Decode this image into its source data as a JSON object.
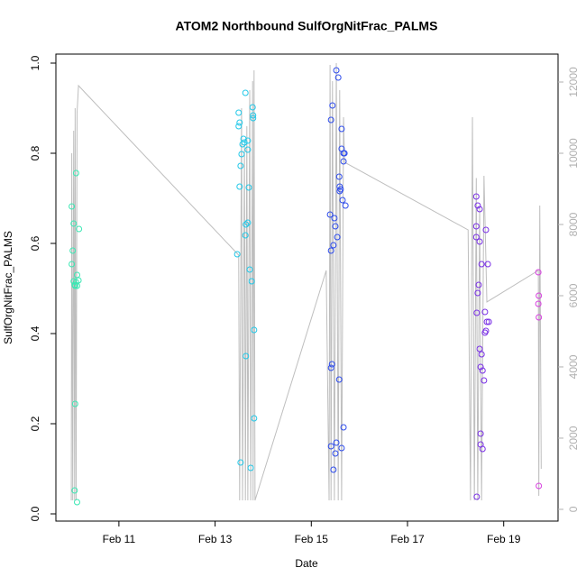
{
  "chart_data": {
    "type": "scatter",
    "title": "ATOM2 Northbound SulfOrgNitFrac_PALMS",
    "x_label": "Date",
    "y_label": "SulfOrgNitFrac_PALMS",
    "xlim": [
      9.69,
      20.13
    ],
    "xticks": [
      {
        "value": 11,
        "label": "Feb 11"
      },
      {
        "value": 13,
        "label": "Feb 13"
      },
      {
        "value": 15,
        "label": "Feb 15"
      },
      {
        "value": 17,
        "label": "Feb 17"
      },
      {
        "value": 19,
        "label": "Feb 19"
      }
    ],
    "ylim": [
      -0.016,
      1.02
    ],
    "yticks": [
      {
        "value": 0,
        "label": "0.0"
      },
      0.2,
      0.4,
      0.6,
      0.8,
      {
        "value": 1,
        "label": "1.0"
      }
    ],
    "y2lim": [
      -330,
      12785
    ],
    "y2ticks": [
      0,
      2000,
      4000,
      6000,
      8000,
      10000,
      12000
    ],
    "series": [
      {
        "type": "line",
        "axis": "y2",
        "color": "#bebebe",
        "x": [
          10.01,
          10.02,
          10.04,
          10.06,
          10.08,
          10.09,
          10.11,
          10.13,
          10.16,
          13.49,
          13.51,
          13.55,
          13.57,
          13.61,
          13.63,
          13.66,
          13.68,
          13.72,
          13.74,
          13.78,
          13.79,
          13.81,
          13.83,
          15.31,
          15.37,
          15.39,
          15.41,
          15.44,
          15.48,
          15.52,
          15.56,
          15.59,
          15.63,
          15.67,
          15.69,
          18.26,
          18.31,
          18.35,
          18.39,
          18.43,
          18.46,
          18.5,
          18.54,
          18.59,
          18.65,
          19.72,
          19.73,
          19.75,
          19.78
        ],
        "values": [
          253,
          10000,
          253,
          10633,
          253,
          11266,
          253,
          11139,
          11899,
          7139,
          253,
          11266,
          253,
          10253,
          253,
          10759,
          253,
          11772,
          253,
          12025,
          253,
          12329,
          253,
          6709,
          253,
          12481,
          253,
          12025,
          253,
          12532,
          253,
          11772,
          253,
          11013,
          9747,
          7848,
          253,
          11013,
          253,
          9304,
          253,
          8481,
          253,
          9367,
          5823,
          6709,
          380,
          8532,
          1139
        ]
      },
      {
        "color": "#3ce8b4",
        "x": [
          10.02,
          10.02,
          10.04,
          10.06,
          10.06,
          10.08,
          10.09,
          10.09,
          10.08,
          10.11,
          10.11,
          10.13,
          10.13,
          10.13,
          10.16,
          10.17
        ],
        "values": [
          0.682,
          0.554,
          0.584,
          0.644,
          0.516,
          0.508,
          0.506,
          0.244,
          0.052,
          0.756,
          0.514,
          0.53,
          0.506,
          0.026,
          0.518,
          0.632
        ]
      },
      {
        "color": "#22c8e8",
        "x": [
          13.46,
          13.49,
          13.49,
          13.51,
          13.51,
          13.53,
          13.53,
          13.55,
          13.57,
          13.59,
          13.61,
          13.63,
          13.63,
          13.64,
          13.64,
          13.68,
          13.68,
          13.68,
          13.7,
          13.72,
          13.74,
          13.76,
          13.78,
          13.79,
          13.79,
          13.81,
          13.81
        ],
        "values": [
          0.576,
          0.86,
          0.89,
          0.868,
          0.726,
          0.772,
          0.114,
          0.798,
          0.82,
          0.832,
          0.824,
          0.934,
          0.618,
          0.35,
          0.642,
          0.828,
          0.808,
          0.646,
          0.724,
          0.542,
          0.102,
          0.516,
          0.902,
          0.884,
          0.878,
          0.408,
          0.212
        ]
      },
      {
        "color": "#2e4cec",
        "x": [
          15.39,
          15.41,
          15.41,
          15.41,
          15.41,
          15.43,
          15.44,
          15.46,
          15.46,
          15.48,
          15.5,
          15.5,
          15.52,
          15.52,
          15.54,
          15.56,
          15.58,
          15.58,
          15.59,
          15.59,
          15.61,
          15.63,
          15.63,
          15.63,
          15.65,
          15.67,
          15.67,
          15.67,
          15.69,
          15.71
        ],
        "values": [
          0.664,
          0.874,
          0.584,
          0.324,
          0.15,
          0.332,
          0.906,
          0.596,
          0.098,
          0.656,
          0.638,
          0.134,
          0.984,
          0.158,
          0.614,
          0.968,
          0.748,
          0.298,
          0.726,
          0.716,
          0.72,
          0.854,
          0.81,
          0.146,
          0.696,
          0.8,
          0.782,
          0.192,
          0.8,
          0.684
        ]
      },
      {
        "color": "#7a30e6",
        "x": [
          18.43,
          18.43,
          18.43,
          18.44,
          18.44,
          18.46,
          18.46,
          18.48,
          18.5,
          18.5,
          18.5,
          18.52,
          18.52,
          18.52,
          18.54,
          18.54,
          18.56,
          18.56,
          18.59,
          18.61,
          18.61,
          18.63,
          18.63,
          18.65,
          18.67,
          18.69
        ],
        "values": [
          0.704,
          0.638,
          0.614,
          0.446,
          0.038,
          0.49,
          0.684,
          0.508,
          0.604,
          0.676,
          0.366,
          0.326,
          0.178,
          0.154,
          0.554,
          0.354,
          0.318,
          0.144,
          0.296,
          0.448,
          0.402,
          0.406,
          0.63,
          0.426,
          0.554,
          0.426
        ]
      },
      {
        "color": "#d840e0",
        "x": [
          19.72,
          19.72,
          19.73,
          19.73,
          19.73
        ],
        "values": [
          0.536,
          0.466,
          0.484,
          0.436,
          0.062
        ]
      }
    ]
  }
}
